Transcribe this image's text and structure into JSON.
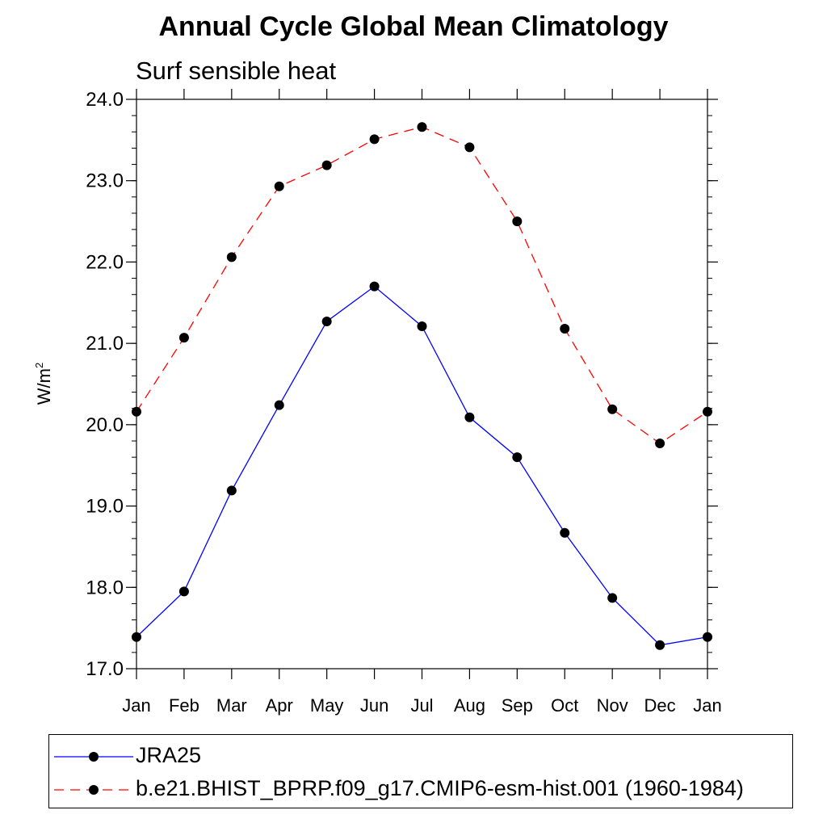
{
  "chart_data": {
    "type": "line",
    "title": "Annual Cycle Global Mean Climatology",
    "subtitle": "Surf sensible heat",
    "ylabel": "W/m",
    "ylabel_sup": "2",
    "xlabel": "",
    "categories": [
      "Jan",
      "Feb",
      "Mar",
      "Apr",
      "May",
      "Jun",
      "Jul",
      "Aug",
      "Sep",
      "Oct",
      "Nov",
      "Dec",
      "Jan"
    ],
    "ylim": [
      17.0,
      24.0
    ],
    "yticks": [
      "17.0",
      "18.0",
      "19.0",
      "20.0",
      "21.0",
      "22.0",
      "23.0",
      "24.0"
    ],
    "legend_position": "bottom",
    "series": [
      {
        "name": "JRA25",
        "color": "#0000ff",
        "style": "solid",
        "values": [
          17.39,
          17.95,
          19.19,
          20.24,
          21.27,
          21.7,
          21.21,
          20.09,
          19.6,
          18.67,
          17.87,
          17.29,
          17.39
        ]
      },
      {
        "name": "b.e21.BHIST_BPRP.f09_g17.CMIP6-esm-hist.001 (1960-1984)",
        "color": "#ff0000",
        "style": "dashed",
        "values": [
          20.16,
          21.07,
          22.06,
          22.93,
          23.19,
          23.51,
          23.66,
          23.41,
          22.5,
          21.18,
          20.19,
          19.77,
          20.16
        ]
      }
    ]
  }
}
